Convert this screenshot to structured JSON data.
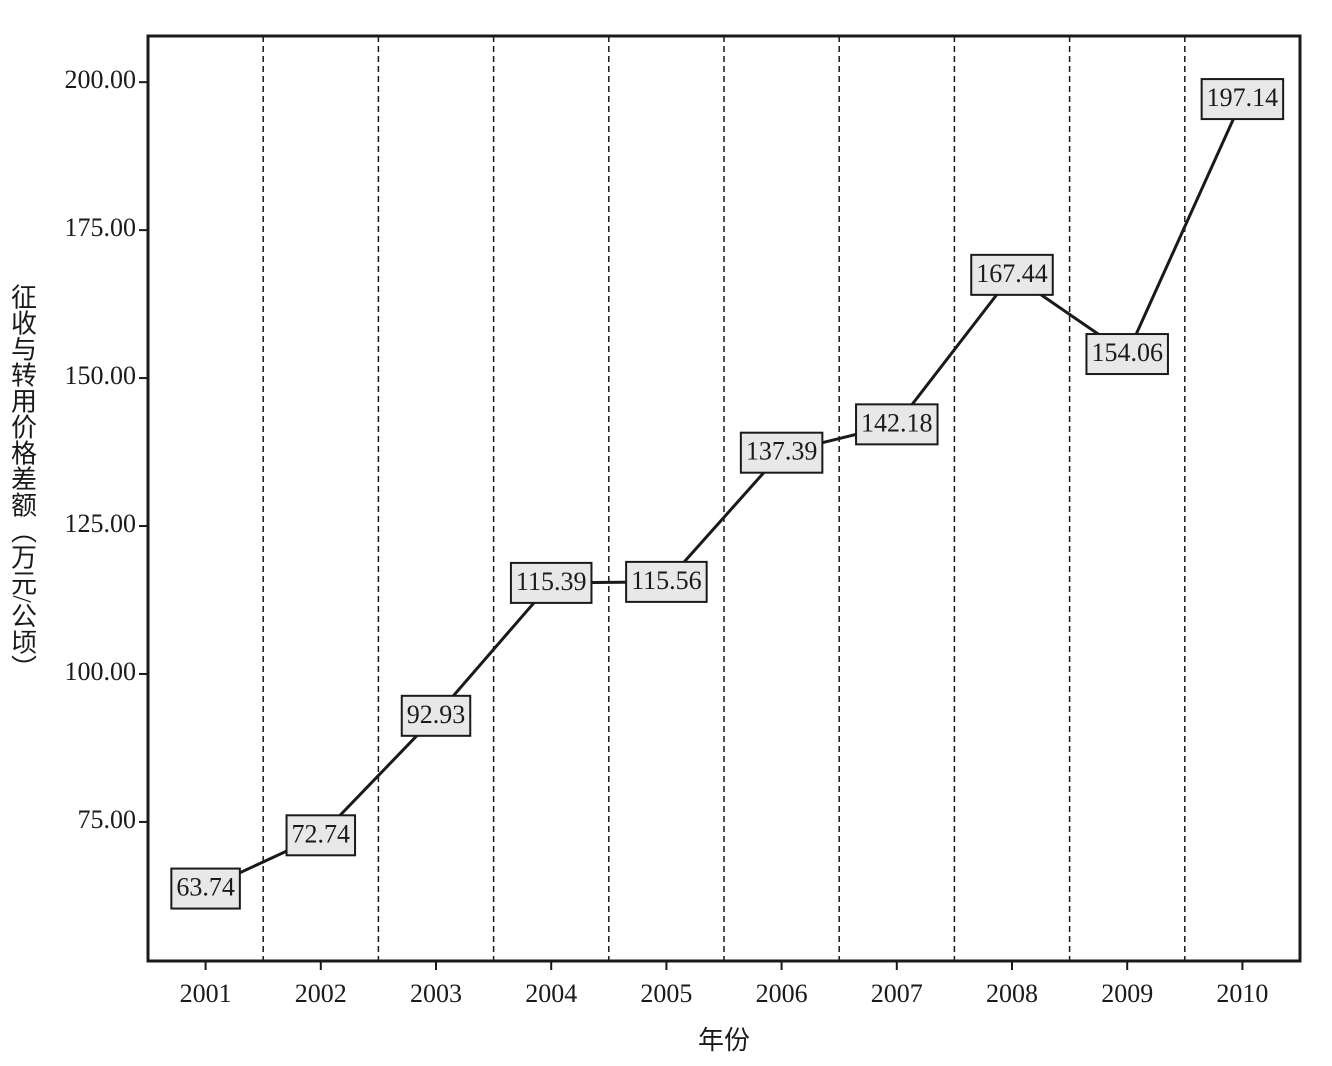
{
  "chart_data": {
    "type": "line",
    "x_label": "年份",
    "y_label": "征收与转用价格差额（万元/公顷）",
    "categories": [
      "2001",
      "2002",
      "2003",
      "2004",
      "2005",
      "2006",
      "2007",
      "2008",
      "2009",
      "2010"
    ],
    "values": [
      63.74,
      72.74,
      92.93,
      115.39,
      115.56,
      137.39,
      142.18,
      167.44,
      154.06,
      197.14
    ],
    "color": "#1a1a1a",
    "ylim": [
      51.5,
      207.8
    ],
    "yticks": [
      {
        "value": 75,
        "label": "75.00"
      },
      {
        "value": 100,
        "label": "100.00"
      },
      {
        "value": 125,
        "label": "125.00"
      },
      {
        "value": 150,
        "label": "150.00"
      },
      {
        "value": 175,
        "label": "175.00"
      },
      {
        "value": 200,
        "label": "200.00"
      }
    ]
  }
}
